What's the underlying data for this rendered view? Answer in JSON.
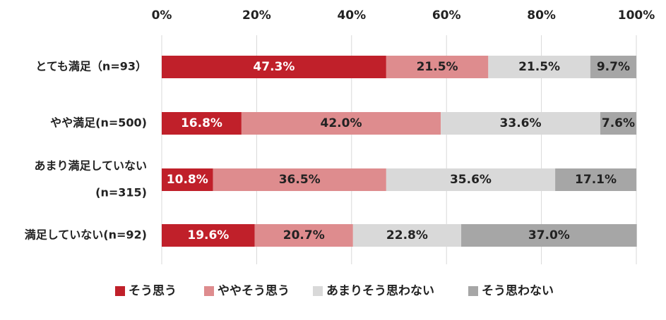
{
  "chart_data": {
    "type": "bar",
    "orientation": "horizontal",
    "stacked": true,
    "categories": [
      [
        "とても満足（n=93）"
      ],
      [
        "やや満足(n=500)"
      ],
      [
        "あまり満足していない",
        "(n=315)"
      ],
      [
        "満足していない(n=92)"
      ]
    ],
    "series": [
      {
        "name": "そう思う",
        "color": "#c0202a",
        "label_color": "#ffffff",
        "values": [
          47.3,
          16.8,
          10.8,
          19.6
        ],
        "labels": [
          "47.3%",
          "16.8%",
          "10.8%",
          "19.6%"
        ]
      },
      {
        "name": "ややそう思う",
        "color": "#de8c8e",
        "label_color": "#222222",
        "values": [
          21.5,
          42.0,
          36.5,
          20.7
        ],
        "labels": [
          "21.5%",
          "42.0%",
          "36.5%",
          "20.7%"
        ]
      },
      {
        "name": "あまりそう思わない",
        "color": "#d9d9d9",
        "label_color": "#222222",
        "values": [
          21.5,
          33.6,
          35.6,
          22.8
        ],
        "labels": [
          "21.5%",
          "33.6%",
          "35.6%",
          "22.8%"
        ]
      },
      {
        "name": "そう思わない",
        "color": "#a6a6a6",
        "label_color": "#222222",
        "values": [
          9.7,
          7.6,
          17.1,
          37.0
        ],
        "labels": [
          "9.7%",
          "7.6%",
          "17.1%",
          "37.0%"
        ]
      }
    ],
    "xlim": [
      0,
      100
    ],
    "xticks": [
      "0%",
      "20%",
      "40%",
      "60%",
      "80%",
      "100%"
    ],
    "grid": true,
    "legend_position": "bottom"
  }
}
